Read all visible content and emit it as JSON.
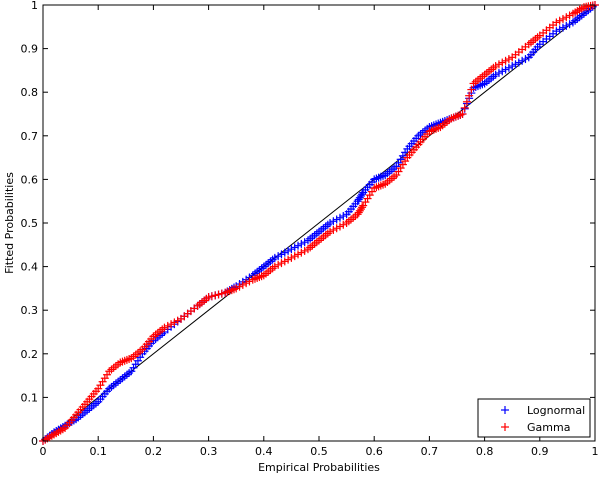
{
  "chart_data": {
    "type": "scatter",
    "title": "",
    "xlabel": "Empirical Probabilities",
    "ylabel": "Fitted Probabilities",
    "xlim": [
      0,
      1
    ],
    "ylim": [
      0,
      1
    ],
    "x_ticks": [
      "0",
      "0.1",
      "0.2",
      "0.3",
      "0.4",
      "0.5",
      "0.6",
      "0.7",
      "0.8",
      "0.9",
      "1"
    ],
    "y_ticks": [
      "0",
      "0.1",
      "0.2",
      "0.3",
      "0.4",
      "0.5",
      "0.6",
      "0.7",
      "0.8",
      "0.9",
      "1"
    ],
    "grid": false,
    "legend_position": "bottom-right",
    "reference_line": {
      "x": [
        0,
        1
      ],
      "y": [
        0,
        1
      ],
      "color": "#000000"
    },
    "series": [
      {
        "name": "Lognormal",
        "color": "#0000ff",
        "marker": "+",
        "points": [
          [
            0.0,
            0.0
          ],
          [
            0.02,
            0.02
          ],
          [
            0.04,
            0.035
          ],
          [
            0.06,
            0.05
          ],
          [
            0.08,
            0.07
          ],
          [
            0.1,
            0.09
          ],
          [
            0.12,
            0.12
          ],
          [
            0.14,
            0.14
          ],
          [
            0.16,
            0.16
          ],
          [
            0.18,
            0.2
          ],
          [
            0.2,
            0.23
          ],
          [
            0.22,
            0.25
          ],
          [
            0.25,
            0.28
          ],
          [
            0.28,
            0.31
          ],
          [
            0.3,
            0.33
          ],
          [
            0.33,
            0.34
          ],
          [
            0.35,
            0.355
          ],
          [
            0.38,
            0.38
          ],
          [
            0.4,
            0.4
          ],
          [
            0.42,
            0.42
          ],
          [
            0.45,
            0.44
          ],
          [
            0.48,
            0.46
          ],
          [
            0.5,
            0.48
          ],
          [
            0.52,
            0.5
          ],
          [
            0.55,
            0.52
          ],
          [
            0.57,
            0.55
          ],
          [
            0.58,
            0.57
          ],
          [
            0.6,
            0.6
          ],
          [
            0.62,
            0.61
          ],
          [
            0.64,
            0.63
          ],
          [
            0.66,
            0.67
          ],
          [
            0.68,
            0.7
          ],
          [
            0.7,
            0.72
          ],
          [
            0.72,
            0.73
          ],
          [
            0.74,
            0.74
          ],
          [
            0.76,
            0.75
          ],
          [
            0.78,
            0.81
          ],
          [
            0.8,
            0.82
          ],
          [
            0.82,
            0.84
          ],
          [
            0.85,
            0.86
          ],
          [
            0.88,
            0.88
          ],
          [
            0.9,
            0.91
          ],
          [
            0.93,
            0.94
          ],
          [
            0.96,
            0.96
          ],
          [
            0.98,
            0.98
          ],
          [
            1.0,
            1.0
          ]
        ]
      },
      {
        "name": "Gamma",
        "color": "#ff0000",
        "marker": "+",
        "points": [
          [
            0.0,
            0.0
          ],
          [
            0.02,
            0.015
          ],
          [
            0.04,
            0.03
          ],
          [
            0.06,
            0.06
          ],
          [
            0.08,
            0.09
          ],
          [
            0.1,
            0.12
          ],
          [
            0.12,
            0.16
          ],
          [
            0.14,
            0.18
          ],
          [
            0.16,
            0.19
          ],
          [
            0.18,
            0.21
          ],
          [
            0.2,
            0.24
          ],
          [
            0.22,
            0.26
          ],
          [
            0.25,
            0.28
          ],
          [
            0.28,
            0.31
          ],
          [
            0.3,
            0.33
          ],
          [
            0.33,
            0.34
          ],
          [
            0.35,
            0.35
          ],
          [
            0.38,
            0.37
          ],
          [
            0.4,
            0.38
          ],
          [
            0.42,
            0.4
          ],
          [
            0.45,
            0.42
          ],
          [
            0.48,
            0.44
          ],
          [
            0.5,
            0.46
          ],
          [
            0.52,
            0.48
          ],
          [
            0.55,
            0.5
          ],
          [
            0.57,
            0.52
          ],
          [
            0.58,
            0.54
          ],
          [
            0.6,
            0.58
          ],
          [
            0.62,
            0.59
          ],
          [
            0.64,
            0.61
          ],
          [
            0.66,
            0.65
          ],
          [
            0.68,
            0.68
          ],
          [
            0.7,
            0.71
          ],
          [
            0.72,
            0.72
          ],
          [
            0.74,
            0.74
          ],
          [
            0.76,
            0.75
          ],
          [
            0.78,
            0.82
          ],
          [
            0.8,
            0.84
          ],
          [
            0.82,
            0.86
          ],
          [
            0.85,
            0.88
          ],
          [
            0.88,
            0.91
          ],
          [
            0.9,
            0.93
          ],
          [
            0.93,
            0.96
          ],
          [
            0.96,
            0.98
          ],
          [
            0.98,
            0.995
          ],
          [
            1.0,
            1.0
          ]
        ]
      }
    ]
  }
}
